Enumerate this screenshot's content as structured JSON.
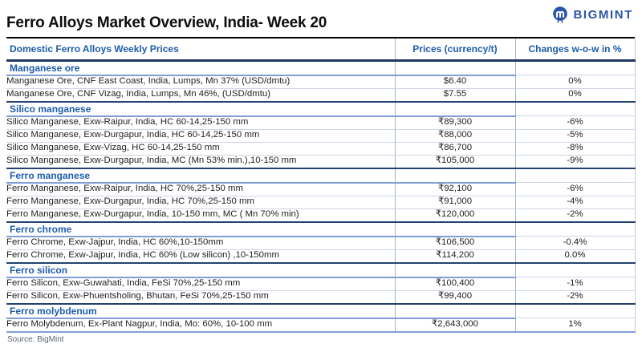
{
  "logo": {
    "brand": "BIGMINT",
    "icon": "bigmint-circle-m-icon",
    "color": "#2B53A7"
  },
  "title": "Ferro Alloys Market Overview, India- Week 20",
  "source": "Source: BigMint",
  "colors": {
    "header_blue": "#1D5CAC",
    "navy_border": "#1F3864",
    "section_underline": "#7F9FD4",
    "row_divider": "#ccd6e4",
    "negative_red": "#E8474B",
    "positive_green": "#2AB172",
    "neutral_text": "#222222",
    "source_gray": "#5C6670"
  },
  "table": {
    "headers": [
      "Domestic Ferro Alloys Weekly Prices",
      "Prices (currency/t)",
      "Changes w-o-w in %"
    ],
    "sections": [
      {
        "name": "Manganese ore",
        "rows": [
          {
            "desc": "Manganese Ore, CNF East Coast, India, Lumps, Mn 37% (USD/dmtu)",
            "price": "$6.40",
            "change": "0%",
            "trend": "flat"
          },
          {
            "desc": "Manganese Ore, CNF Vizag, India, Lumps, Mn 46%, (USD/dmtu)",
            "price": "$7.55",
            "change": "0%",
            "trend": "flat"
          }
        ]
      },
      {
        "name": "Silico manganese",
        "rows": [
          {
            "desc": "Silico Manganese, Exw-Raipur, India, HC 60-14,25-150 mm",
            "price": "₹89,300",
            "change": "-6%",
            "trend": "down"
          },
          {
            "desc": "Silico Manganese, Exw-Durgapur, India, HC 60-14,25-150 mm",
            "price": "₹88,000",
            "change": "-5%",
            "trend": "down"
          },
          {
            "desc": "Silico Manganese, Exw-Vizag, HC 60-14,25-150 mm",
            "price": "₹86,700",
            "change": "-8%",
            "trend": "down"
          },
          {
            "desc": "Silico Manganese, Exw-Durgapur, India, MC (Mn 53% min.),10-150 mm",
            "price": "₹105,000",
            "change": "-9%",
            "trend": "down"
          }
        ]
      },
      {
        "name": "Ferro manganese",
        "rows": [
          {
            "desc": "Ferro Manganese, Exw-Raipur, India, HC 70%,25-150 mm",
            "price": "₹92,100",
            "change": "-6%",
            "trend": "down"
          },
          {
            "desc": "Ferro Manganese, Exw-Durgapur, India, HC 70%,25-150 mm",
            "price": "₹91,000",
            "change": "-4%",
            "trend": "down"
          },
          {
            "desc": "Ferro Manganese, Exw-Durgapur, India, 10-150 mm, MC ( Mn 70% min)",
            "price": "₹120,000",
            "change": "-2%",
            "trend": "down"
          }
        ]
      },
      {
        "name": "Ferro chrome",
        "rows": [
          {
            "desc": "Ferro Chrome, Exw-Jajpur, India, HC 60%,10-150mm",
            "price": "₹106,500",
            "change": "-0.4%",
            "trend": "down"
          },
          {
            "desc": "Ferro Chrome, Exw-Jajpur, India, HC 60% (Low silicon) ,10-150mm",
            "price": "₹114,200",
            "change": "0.0%",
            "trend": "flat"
          }
        ]
      },
      {
        "name": "Ferro silicon",
        "rows": [
          {
            "desc": "Ferro Silicon, Exw-Guwahati, India, FeSi 70%,25-150 mm",
            "price": "₹100,400",
            "change": "-1%",
            "trend": "down"
          },
          {
            "desc": "Ferro Silicon, Exw-Phuentsholing, Bhutan, FeSi 70%,25-150 mm",
            "price": "₹99,400",
            "change": "-2%",
            "trend": "down"
          }
        ]
      },
      {
        "name": "Ferro molybdenum",
        "rows": [
          {
            "desc": "Ferro Molybdenum, Ex-Plant Nagpur, India, Mo: 60%, 10-100 mm",
            "price": "₹2,643,000",
            "change": "1%",
            "trend": "up"
          }
        ]
      }
    ]
  }
}
